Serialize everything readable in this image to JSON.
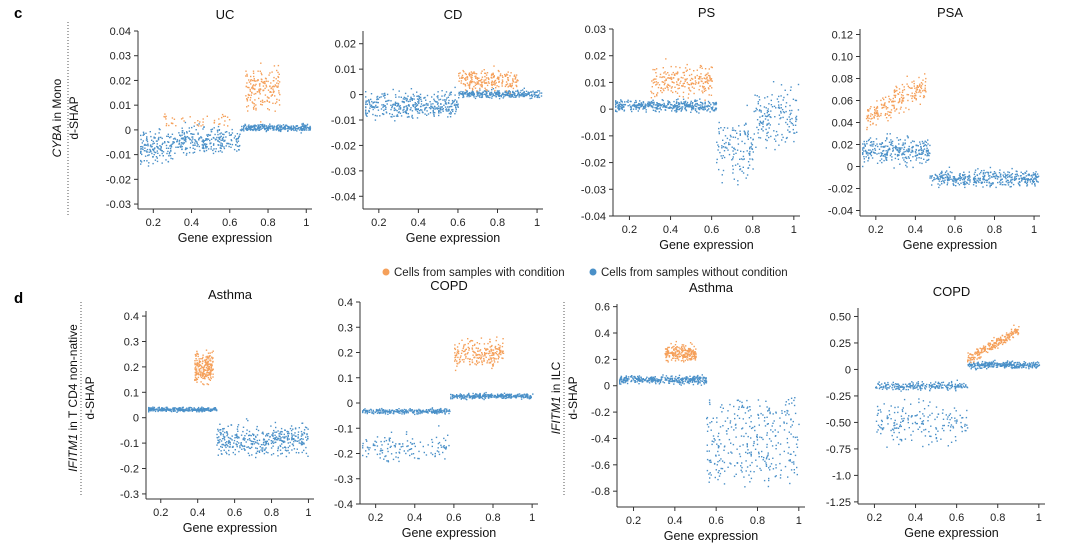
{
  "colors": {
    "with_condition": "#f5a05a",
    "without_condition": "#4a90c8"
  },
  "panels": {
    "c": "c",
    "d": "d"
  },
  "legend": {
    "with": "Cells from samples with condition",
    "without": "Cells from samples without condition"
  },
  "row_labels": {
    "c": {
      "italic": "CYBA",
      "rest": " in Mono",
      "sub": "d-SHAP"
    },
    "d1": {
      "italic": "IFITM1",
      "rest": " in T CD4 non-native",
      "sub": "d-SHAP"
    },
    "d2": {
      "italic": "IFITM1",
      "rest": " in ILC",
      "sub": "d-SHAP"
    }
  },
  "chart_data": [
    {
      "type": "scatter",
      "title": "UC",
      "xlabel": "Gene expression",
      "ylabel": "d-SHAP",
      "xlim": [
        0.12,
        1.03
      ],
      "ylim": [
        -0.032,
        0.04
      ],
      "xticks": [
        0.2,
        0.4,
        0.6,
        0.8,
        1
      ],
      "xtick_labels": [
        "0.2",
        "0.4",
        "0.6",
        "0.8",
        "1"
      ],
      "yticks": [
        -0.03,
        -0.02,
        -0.01,
        0,
        0.01,
        0.02,
        0.03,
        0.04
      ],
      "ytick_labels": [
        "-0.03",
        "-0.02",
        "-0.01",
        "0",
        "0.01",
        "0.02",
        "0.03",
        "0.04"
      ],
      "series": [
        {
          "name": "Cells from samples with condition"
        },
        {
          "name": "Cells from samples without condition"
        }
      ]
    },
    {
      "type": "scatter",
      "title": "CD",
      "xlabel": "Gene expression",
      "ylabel": "",
      "xlim": [
        0.12,
        1.03
      ],
      "ylim": [
        -0.045,
        0.025
      ],
      "xticks": [
        0.2,
        0.4,
        0.6,
        0.8,
        1
      ],
      "xtick_labels": [
        "0.2",
        "0.4",
        "0.6",
        "0.8",
        "1"
      ],
      "yticks": [
        -0.04,
        -0.03,
        -0.02,
        -0.01,
        0,
        0.01,
        0.02
      ],
      "ytick_labels": [
        "-0.04",
        "-0.03",
        "-0.02",
        "-0.01",
        "0",
        "0.01",
        "0.02"
      ],
      "series": [
        {
          "name": "Cells from samples with condition"
        },
        {
          "name": "Cells from samples without condition"
        }
      ]
    },
    {
      "type": "scatter",
      "title": "PS",
      "xlabel": "Gene expression",
      "ylabel": "",
      "xlim": [
        0.12,
        1.03
      ],
      "ylim": [
        -0.04,
        0.03
      ],
      "xticks": [
        0.2,
        0.4,
        0.6,
        0.8,
        1
      ],
      "xtick_labels": [
        "0.2",
        "0.4",
        "0.6",
        "0.8",
        "1"
      ],
      "yticks": [
        -0.04,
        -0.03,
        -0.02,
        -0.01,
        0,
        0.01,
        0.02,
        0.03
      ],
      "ytick_labels": [
        "-0.04",
        "-0.03",
        "-0.02",
        "-0.01",
        "0",
        "0.01",
        "0.02",
        "0.03"
      ],
      "series": [
        {
          "name": "Cells from samples with condition"
        },
        {
          "name": "Cells from samples without condition"
        }
      ]
    },
    {
      "type": "scatter",
      "title": "PSA",
      "xlabel": "Gene expression",
      "ylabel": "",
      "xlim": [
        0.12,
        1.03
      ],
      "ylim": [
        -0.045,
        0.125
      ],
      "xticks": [
        0.2,
        0.4,
        0.6,
        0.8,
        1
      ],
      "xtick_labels": [
        "0.2",
        "0.4",
        "0.6",
        "0.8",
        "1"
      ],
      "yticks": [
        -0.04,
        -0.02,
        0,
        0.02,
        0.04,
        0.06,
        0.08,
        0.1,
        0.12
      ],
      "ytick_labels": [
        "-0.04",
        "-0.02",
        "0",
        "0.02",
        "0.04",
        "0.06",
        "0.08",
        "0.10",
        "0.12"
      ],
      "series": [
        {
          "name": "Cells from samples with condition"
        },
        {
          "name": "Cells from samples without condition"
        }
      ]
    },
    {
      "type": "scatter",
      "title": "Asthma",
      "xlabel": "Gene expression",
      "ylabel": "d-SHAP",
      "xlim": [
        0.12,
        1.03
      ],
      "ylim": [
        -0.32,
        0.42
      ],
      "xticks": [
        0.2,
        0.4,
        0.6,
        0.8,
        1
      ],
      "xtick_labels": [
        "0.2",
        "0.4",
        "0.6",
        "0.8",
        "1"
      ],
      "yticks": [
        -0.3,
        -0.2,
        -0.1,
        0,
        0.1,
        0.2,
        0.3,
        0.4
      ],
      "ytick_labels": [
        "-0.3",
        "-0.2",
        "-0.1",
        "0",
        "0.1",
        "0.2",
        "0.3",
        "0.4"
      ],
      "series": [
        {
          "name": "Cells from samples with condition"
        },
        {
          "name": "Cells from samples without condition"
        }
      ]
    },
    {
      "type": "scatter",
      "title": "COPD",
      "xlabel": "Gene expression",
      "ylabel": "",
      "xlim": [
        0.12,
        1.03
      ],
      "ylim": [
        -0.4,
        0.4
      ],
      "xticks": [
        0.2,
        0.4,
        0.6,
        0.8,
        1
      ],
      "xtick_labels": [
        "0.2",
        "0.4",
        "0.6",
        "0.8",
        "1"
      ],
      "yticks": [
        -0.4,
        -0.3,
        -0.2,
        -0.1,
        0,
        0.1,
        0.2,
        0.3,
        0.4
      ],
      "ytick_labels": [
        "-0.4",
        "-0.3",
        "-0.2",
        "-0.1",
        "0",
        "0.1",
        "0.2",
        "0.3",
        "0.4"
      ],
      "series": [
        {
          "name": "Cells from samples with condition"
        },
        {
          "name": "Cells from samples without condition"
        }
      ]
    },
    {
      "type": "scatter",
      "title": "Asthma",
      "xlabel": "Gene expression",
      "ylabel": "d-SHAP",
      "xlim": [
        0.12,
        1.03
      ],
      "ylim": [
        -0.92,
        0.62
      ],
      "xticks": [
        0.2,
        0.4,
        0.6,
        0.8,
        1
      ],
      "xtick_labels": [
        "0.2",
        "0.4",
        "0.6",
        "0.8",
        "1"
      ],
      "yticks": [
        -0.8,
        -0.6,
        -0.4,
        -0.2,
        0,
        0.2,
        0.4,
        0.6
      ],
      "ytick_labels": [
        "-0.8",
        "-0.6",
        "-0.4",
        "-0.2",
        "0",
        "0.2",
        "0.4",
        "0.6"
      ],
      "series": [
        {
          "name": "Cells from samples with condition"
        },
        {
          "name": "Cells from samples without condition"
        }
      ]
    },
    {
      "type": "scatter",
      "title": "COPD",
      "xlabel": "Gene expression",
      "ylabel": "",
      "xlim": [
        0.12,
        1.03
      ],
      "ylim": [
        -1.27,
        0.58
      ],
      "xticks": [
        0.2,
        0.4,
        0.6,
        0.8,
        1
      ],
      "xtick_labels": [
        "0.2",
        "0.4",
        "0.6",
        "0.8",
        "1"
      ],
      "yticks": [
        -1.25,
        -1,
        -0.75,
        -0.5,
        -0.25,
        0,
        0.25,
        0.5
      ],
      "ytick_labels": [
        "-1.25",
        "-1.0",
        "-0.75",
        "-0.50",
        "-0.25",
        "0",
        "0.25",
        "0.50"
      ],
      "series": [
        {
          "name": "Cells from samples with condition"
        },
        {
          "name": "Cells from samples without condition"
        }
      ]
    }
  ]
}
